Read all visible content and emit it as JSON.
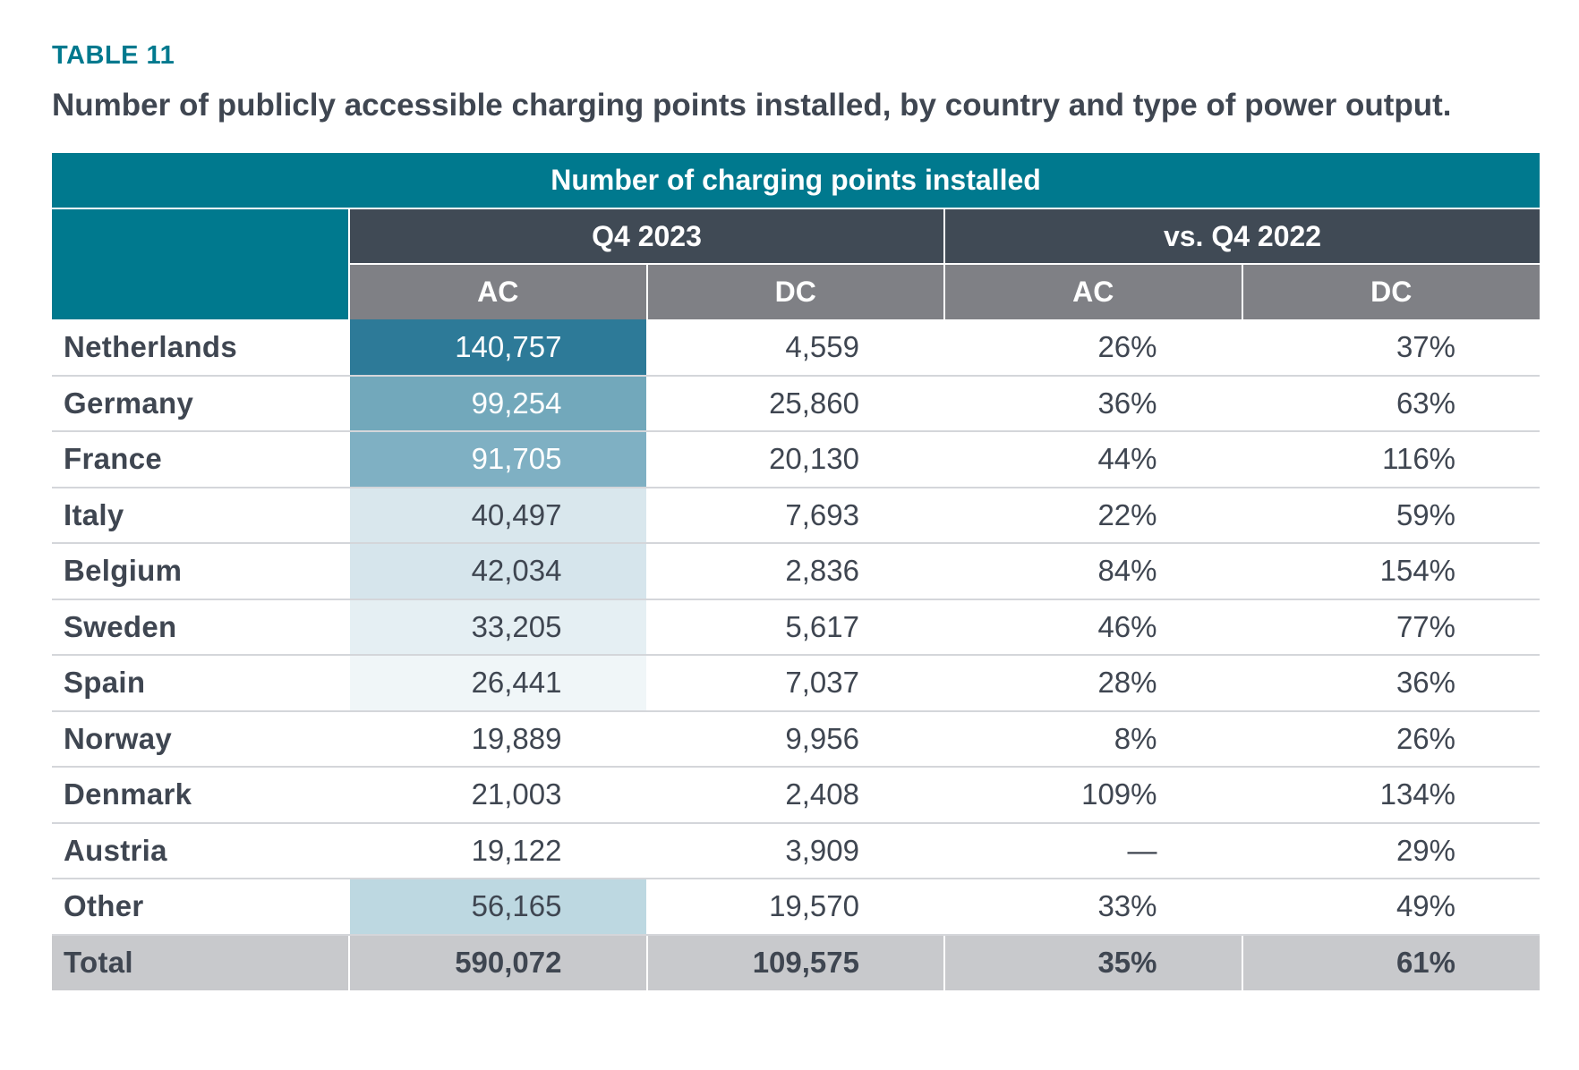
{
  "table_label": "TABLE 11",
  "title": "Number of publicly accessible charging points installed, by country and type of power output.",
  "header": {
    "main": "Number of charging points installed",
    "group_current": "Q4 2023",
    "group_compare": "vs. Q4 2022",
    "col_ac": "AC",
    "col_dc": "DC"
  },
  "rows": [
    {
      "country": "Netherlands",
      "ac": "140,757",
      "dc": "4,559",
      "ac_change": "26%",
      "dc_change": "37%",
      "ac_shade": "#2d7a98",
      "ac_text": "#ffffff"
    },
    {
      "country": "Germany",
      "ac": "99,254",
      "dc": "25,860",
      "ac_change": "36%",
      "dc_change": "63%",
      "ac_shade": "#72a8bb",
      "ac_text": "#ffffff"
    },
    {
      "country": "France",
      "ac": "91,705",
      "dc": "20,130",
      "ac_change": "44%",
      "dc_change": "116%",
      "ac_shade": "#7fb0c3",
      "ac_text": "#ffffff"
    },
    {
      "country": "Italy",
      "ac": "40,497",
      "dc": "7,693",
      "ac_change": "22%",
      "dc_change": "59%",
      "ac_shade": "#d9e7ed",
      "ac_text": "#3f4651"
    },
    {
      "country": "Belgium",
      "ac": "42,034",
      "dc": "2,836",
      "ac_change": "84%",
      "dc_change": "154%",
      "ac_shade": "#d6e5ec",
      "ac_text": "#3f4651"
    },
    {
      "country": "Sweden",
      "ac": "33,205",
      "dc": "5,617",
      "ac_change": "46%",
      "dc_change": "77%",
      "ac_shade": "#e5eff3",
      "ac_text": "#3f4651"
    },
    {
      "country": "Spain",
      "ac": "26,441",
      "dc": "7,037",
      "ac_change": "28%",
      "dc_change": "36%",
      "ac_shade": "#f0f6f8",
      "ac_text": "#3f4651"
    },
    {
      "country": "Norway",
      "ac": "19,889",
      "dc": "9,956",
      "ac_change": "8%",
      "dc_change": "26%",
      "ac_shade": "#ffffff",
      "ac_text": "#3f4651"
    },
    {
      "country": "Denmark",
      "ac": "21,003",
      "dc": "2,408",
      "ac_change": "109%",
      "dc_change": "134%",
      "ac_shade": "#ffffff",
      "ac_text": "#3f4651"
    },
    {
      "country": "Austria",
      "ac": "19,122",
      "dc": "3,909",
      "ac_change": "—",
      "dc_change": "29%",
      "ac_shade": "#ffffff",
      "ac_text": "#3f4651"
    },
    {
      "country": "Other",
      "ac": "56,165",
      "dc": "19,570",
      "ac_change": "33%",
      "dc_change": "49%",
      "ac_shade": "#bdd8e1",
      "ac_text": "#3f4651"
    }
  ],
  "total": {
    "country": "Total",
    "ac": "590,072",
    "dc": "109,575",
    "ac_change": "35%",
    "dc_change": "61%"
  },
  "colors": {
    "teal": "#00798e",
    "dark_header": "#404a55",
    "sub_header": "#7f8085",
    "total_row": "#c8c9cc",
    "text": "#3f4651"
  }
}
